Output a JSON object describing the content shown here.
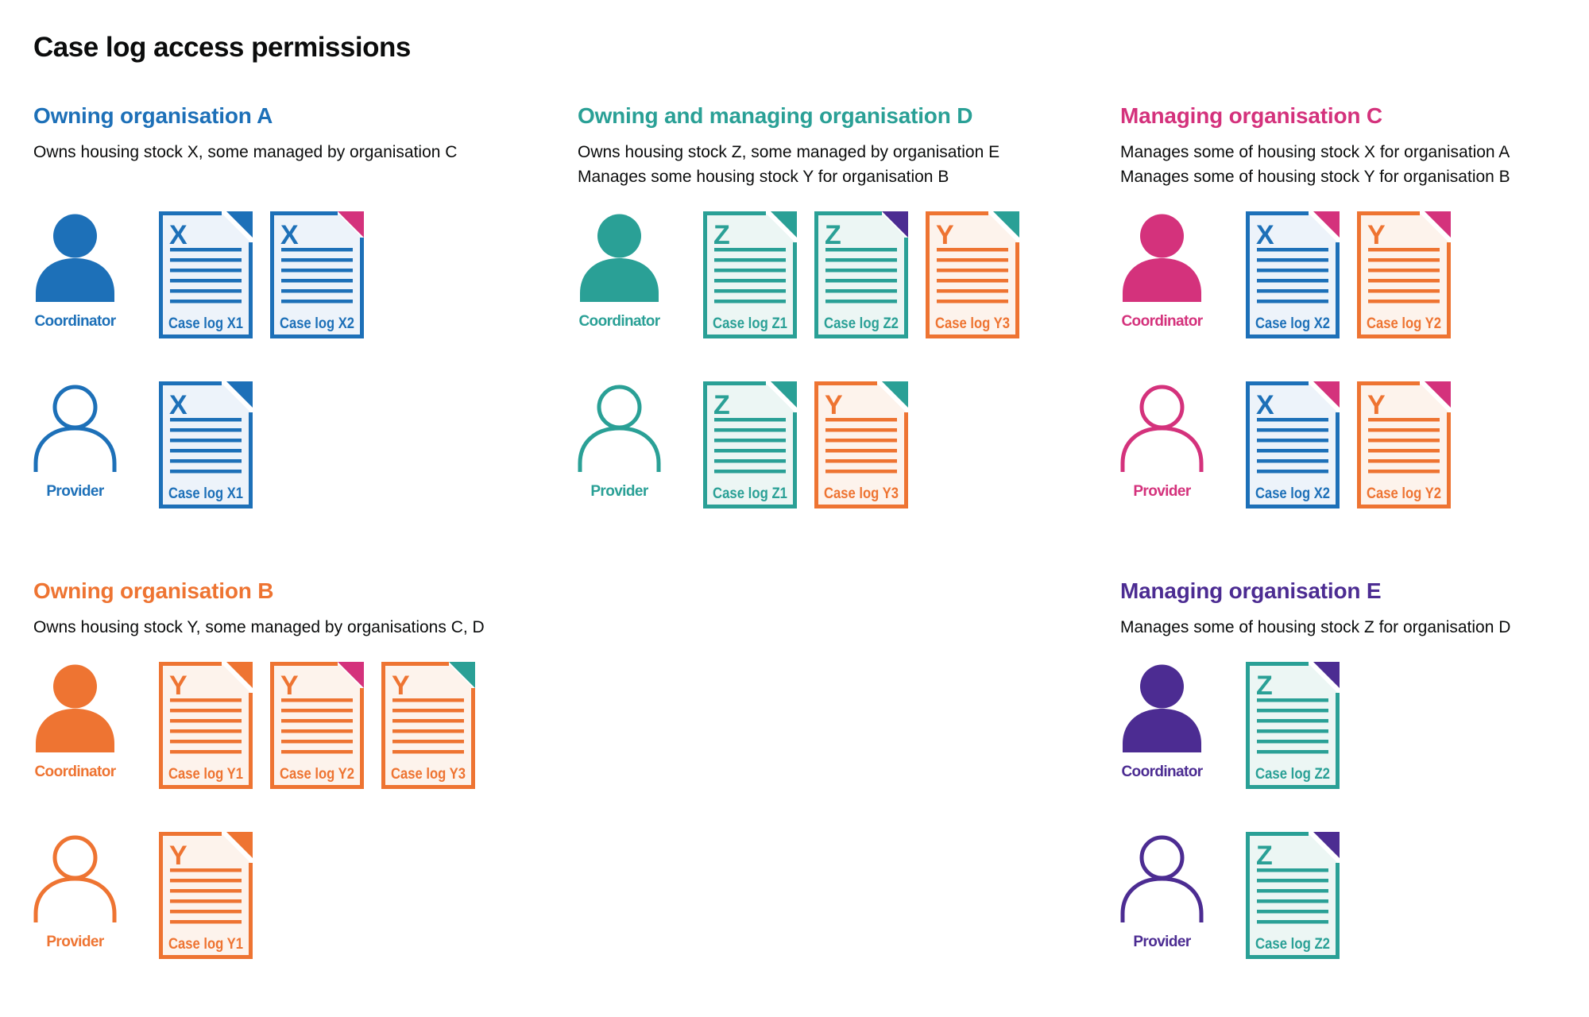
{
  "page": {
    "title": "Case log access permissions"
  },
  "colors": {
    "blue": "#1d70b8",
    "teal": "#2aa096",
    "pink": "#d4327c",
    "orange": "#ee7432",
    "purple": "#4c2c92",
    "text": "#0b0c0c",
    "doc_fill": {
      "blue": "#edf3fa",
      "teal": "#ecf6f4",
      "orange": "#fdf3ec"
    }
  },
  "sections": [
    {
      "id": "A",
      "title": "Owning organisation A",
      "color": "blue",
      "position": "top-left",
      "band": "top",
      "subtitle_lines": [
        "Owns housing stock X, some managed by organisation C"
      ],
      "rows": [
        {
          "role": "Coordinator",
          "person": "filled",
          "docs": [
            {
              "label": "Case log X1",
              "letter": "X",
              "stock": "blue",
              "fold": "blue",
              "style": "notched"
            },
            {
              "label": "Case log X2",
              "letter": "X",
              "stock": "blue",
              "fold": "pink",
              "style": "solid"
            }
          ]
        },
        {
          "role": "Provider",
          "person": "outline",
          "docs": [
            {
              "label": "Case log X1",
              "letter": "X",
              "stock": "blue",
              "fold": "blue",
              "style": "notched"
            }
          ]
        }
      ]
    },
    {
      "id": "D",
      "title": "Owning and managing organisation D",
      "color": "teal",
      "position": "top-middle",
      "band": "top",
      "subtitle_lines": [
        "Owns housing stock Z, some managed by organisation E",
        "Manages some housing stock Y for organisation B"
      ],
      "rows": [
        {
          "role": "Coordinator",
          "person": "filled",
          "docs": [
            {
              "label": "Case log Z1",
              "letter": "Z",
              "stock": "teal",
              "fold": "teal",
              "style": "notched"
            },
            {
              "label": "Case log Z2",
              "letter": "Z",
              "stock": "teal",
              "fold": "purple",
              "style": "solid"
            },
            {
              "label": "Case log Y3",
              "letter": "Y",
              "stock": "orange",
              "fold": "teal",
              "style": "notched"
            }
          ]
        },
        {
          "role": "Provider",
          "person": "outline",
          "docs": [
            {
              "label": "Case log Z1",
              "letter": "Z",
              "stock": "teal",
              "fold": "teal",
              "style": "notched"
            },
            {
              "label": "Case log Y3",
              "letter": "Y",
              "stock": "orange",
              "fold": "teal",
              "style": "notched"
            }
          ]
        }
      ]
    },
    {
      "id": "C",
      "title": "Managing organisation C",
      "color": "pink",
      "position": "top-right",
      "band": "top",
      "subtitle_lines": [
        "Manages some of housing stock X for organisation A",
        "Manages some of housing stock Y for organisation B"
      ],
      "rows": [
        {
          "role": "Coordinator",
          "person": "filled",
          "docs": [
            {
              "label": "Case log X2",
              "letter": "X",
              "stock": "blue",
              "fold": "pink",
              "style": "notched"
            },
            {
              "label": "Case log Y2",
              "letter": "Y",
              "stock": "orange",
              "fold": "pink",
              "style": "notched"
            }
          ]
        },
        {
          "role": "Provider",
          "person": "outline",
          "docs": [
            {
              "label": "Case log X2",
              "letter": "X",
              "stock": "blue",
              "fold": "pink",
              "style": "notched"
            },
            {
              "label": "Case log Y2",
              "letter": "Y",
              "stock": "orange",
              "fold": "pink",
              "style": "notched"
            }
          ]
        }
      ]
    },
    {
      "id": "B",
      "title": "Owning organisation B",
      "color": "orange",
      "position": "bottom-left",
      "band": "bottom",
      "subtitle_lines": [
        "Owns housing stock Y, some managed by organisations C, D"
      ],
      "rows": [
        {
          "role": "Coordinator",
          "person": "filled",
          "docs": [
            {
              "label": "Case log Y1",
              "letter": "Y",
              "stock": "orange",
              "fold": "orange",
              "style": "notched"
            },
            {
              "label": "Case log Y2",
              "letter": "Y",
              "stock": "orange",
              "fold": "pink",
              "style": "solid"
            },
            {
              "label": "Case log Y3",
              "letter": "Y",
              "stock": "orange",
              "fold": "teal",
              "style": "solid"
            }
          ]
        },
        {
          "role": "Provider",
          "person": "outline",
          "docs": [
            {
              "label": "Case log Y1",
              "letter": "Y",
              "stock": "orange",
              "fold": "orange",
              "style": "notched"
            }
          ]
        }
      ]
    },
    {
      "id": "E",
      "title": "Managing organisation E",
      "color": "purple",
      "position": "bottom-right",
      "band": "bottom",
      "subtitle_lines": [
        "Manages some of housing stock Z for organisation D"
      ],
      "rows": [
        {
          "role": "Coordinator",
          "person": "filled",
          "docs": [
            {
              "label": "Case log Z2",
              "letter": "Z",
              "stock": "teal",
              "fold": "purple",
              "style": "notched"
            }
          ]
        },
        {
          "role": "Provider",
          "person": "outline",
          "docs": [
            {
              "label": "Case log Z2",
              "letter": "Z",
              "stock": "teal",
              "fold": "purple",
              "style": "notched"
            }
          ]
        }
      ]
    }
  ]
}
